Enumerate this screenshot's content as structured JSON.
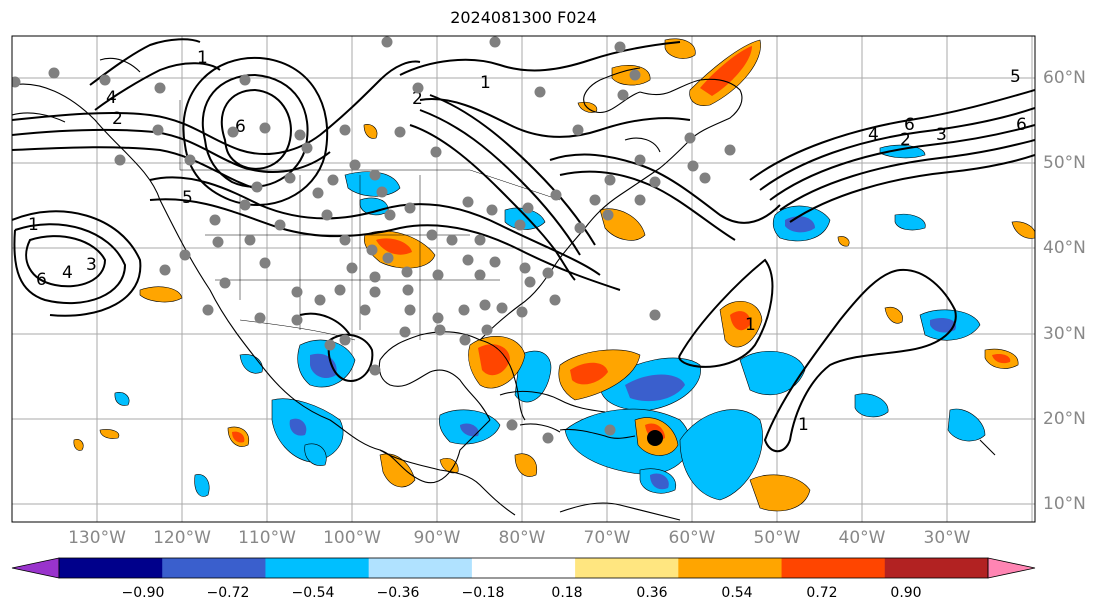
{
  "title": "2024081300 F024",
  "lon_ticks": [
    "130°W",
    "120°W",
    "110°W",
    "100°W",
    "90°W",
    "80°W",
    "70°W",
    "60°W",
    "50°W",
    "40°W",
    "30°W"
  ],
  "lat_ticks": [
    "60°N",
    "50°N",
    "40°N",
    "30°N",
    "20°N",
    "10°N"
  ],
  "colorbar": {
    "labels": [
      "−0.90",
      "−0.72",
      "−0.54",
      "−0.36",
      "−0.18",
      "0.18",
      "0.36",
      "0.54",
      "0.72",
      "0.90"
    ],
    "colors": [
      "#9933cc",
      "#00008b",
      "#3a5fcd",
      "#00bfff",
      "#b0e2ff",
      "#ffffff",
      "#ffe680",
      "#ffa500",
      "#ff4500",
      "#b22222",
      "#ff85b3"
    ]
  },
  "colors": {
    "positive": "#ffa500",
    "positive_mid": "#ff4500",
    "negative": "#00bfff",
    "negative_mid": "#3a5fcd",
    "station": "#808080"
  },
  "contour_labels": [
    "1",
    "2",
    "3",
    "4",
    "5",
    "6"
  ]
}
